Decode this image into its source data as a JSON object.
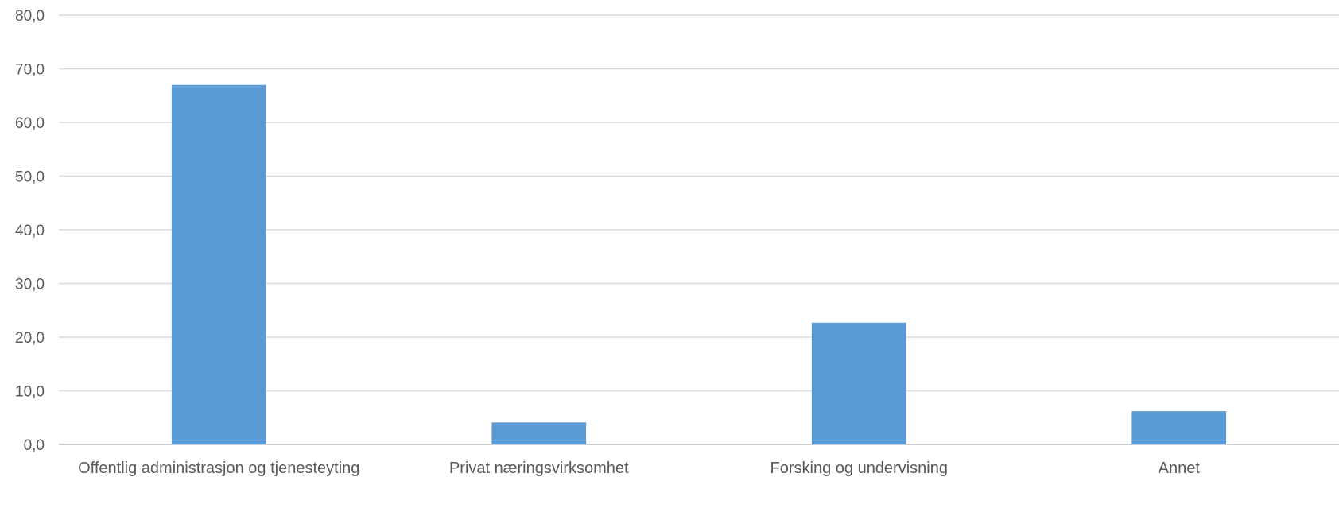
{
  "chart_data": {
    "type": "bar",
    "title": "",
    "xlabel": "",
    "ylabel": "",
    "categories": [
      "Offentlig administrasjon og tjenesteyting",
      "Privat næringsvirksomhet",
      "Forsking og undervisning",
      "Annet"
    ],
    "values": [
      67.0,
      4.1,
      22.7,
      6.2
    ],
    "ylim": [
      0,
      80
    ],
    "yticks": [
      "0,0",
      "10,0",
      "20,0",
      "30,0",
      "40,0",
      "50,0",
      "60,0",
      "70,0",
      "80,0"
    ],
    "ytick_values": [
      0,
      10,
      20,
      30,
      40,
      50,
      60,
      70,
      80
    ],
    "grid": true,
    "legend": "none",
    "bar_color": "#5b9bd5"
  }
}
